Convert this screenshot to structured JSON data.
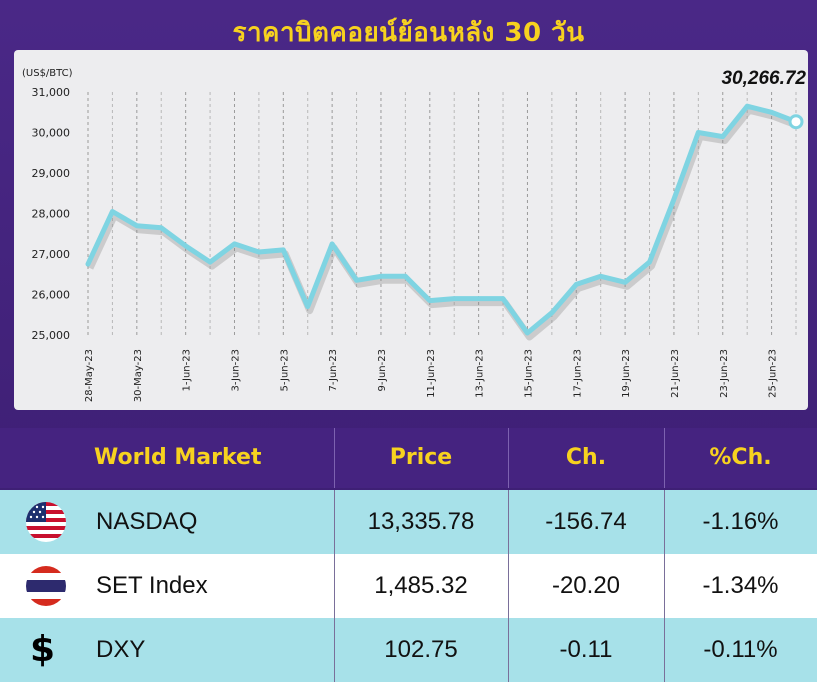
{
  "title": "ราคาบิตคอยน์ย้อนหลัง 30 วัน",
  "chart_data": {
    "type": "line",
    "unit_label": "(US$/BTC)",
    "last_value_label": "30,266.72",
    "ylim": [
      25000,
      31000
    ],
    "yticks": [
      "25,000",
      "26,000",
      "27,000",
      "28,000",
      "29,000",
      "30,000",
      "31,000"
    ],
    "xtick_labels": [
      "28-May-23",
      "30-May-23",
      "1-Jun-23",
      "3-Jun-23",
      "5-Jun-23",
      "7-Jun-23",
      "9-Jun-23",
      "11-Jun-23",
      "13-Jun-23",
      "15-Jun-23",
      "17-Jun-23",
      "19-Jun-23",
      "21-Jun-23",
      "23-Jun-23",
      "25-Jun-23"
    ],
    "x": [
      "28-May-23",
      "29-May-23",
      "30-May-23",
      "31-May-23",
      "1-Jun-23",
      "2-Jun-23",
      "3-Jun-23",
      "4-Jun-23",
      "5-Jun-23",
      "6-Jun-23",
      "7-Jun-23",
      "8-Jun-23",
      "9-Jun-23",
      "10-Jun-23",
      "11-Jun-23",
      "12-Jun-23",
      "13-Jun-23",
      "14-Jun-23",
      "15-Jun-23",
      "16-Jun-23",
      "17-Jun-23",
      "18-Jun-23",
      "19-Jun-23",
      "20-Jun-23",
      "21-Jun-23",
      "22-Jun-23",
      "23-Jun-23",
      "24-Jun-23",
      "25-Jun-23",
      "26-Jun-23"
    ],
    "values": [
      26750,
      28050,
      27700,
      27650,
      27200,
      26800,
      27250,
      27050,
      27100,
      25700,
      27250,
      26350,
      26450,
      26450,
      25850,
      25900,
      25900,
      25900,
      25050,
      25550,
      26250,
      26450,
      26300,
      26800,
      28350,
      30000,
      29900,
      30650,
      30500,
      30266.72
    ],
    "color": "#7fd4e2"
  },
  "table": {
    "headers": [
      "World Market",
      "Price",
      "Ch.",
      "%Ch."
    ],
    "rows": [
      {
        "flag": "us-flag-icon",
        "name": "NASDAQ",
        "price": "13,335.78",
        "ch": "-156.74",
        "pct": "-1.16%"
      },
      {
        "flag": "thai-flag-icon",
        "name": "SET Index",
        "price": "1,485.32",
        "ch": "-20.20",
        "pct": "-1.34%"
      },
      {
        "flag": "dollar-icon",
        "symbol": "$",
        "name": "DXY",
        "price": "102.75",
        "ch": "-0.11",
        "pct": "-0.11%"
      }
    ]
  }
}
